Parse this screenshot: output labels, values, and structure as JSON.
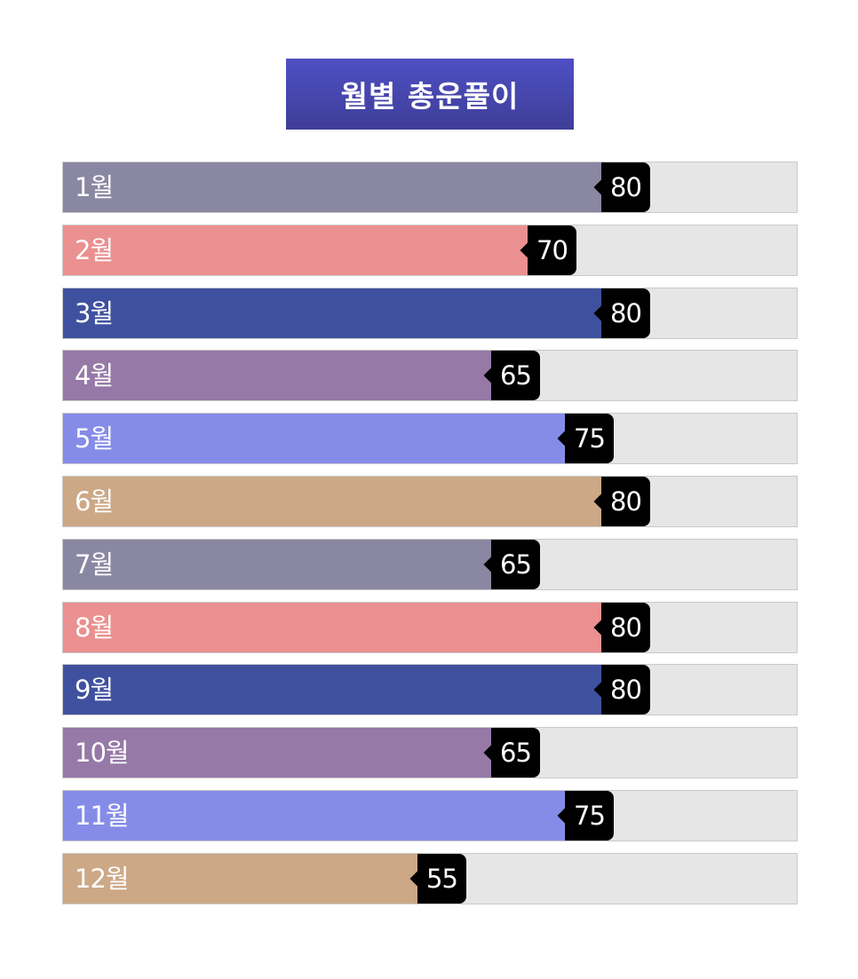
{
  "title": "월별 총운풀이",
  "chart_data": {
    "type": "bar",
    "orientation": "horizontal",
    "title": "월별 총운풀이",
    "categories": [
      "1월",
      "2월",
      "3월",
      "4월",
      "5월",
      "6월",
      "7월",
      "8월",
      "9월",
      "10월",
      "11월",
      "12월"
    ],
    "values": [
      80,
      70,
      80,
      65,
      75,
      80,
      65,
      80,
      80,
      65,
      75,
      55
    ],
    "xlim": [
      0,
      100
    ],
    "colors": [
      "#8a87a3",
      "#eb9090",
      "#3f519e",
      "#9679a7",
      "#858ce8",
      "#cca886",
      "#8a87a3",
      "#eb9090",
      "#3f519e",
      "#9679a7",
      "#858ce8",
      "#cca886"
    ],
    "track_color": "#e6e6e6",
    "label_bg_color": "#000000",
    "grid": false,
    "legend": "none"
  }
}
